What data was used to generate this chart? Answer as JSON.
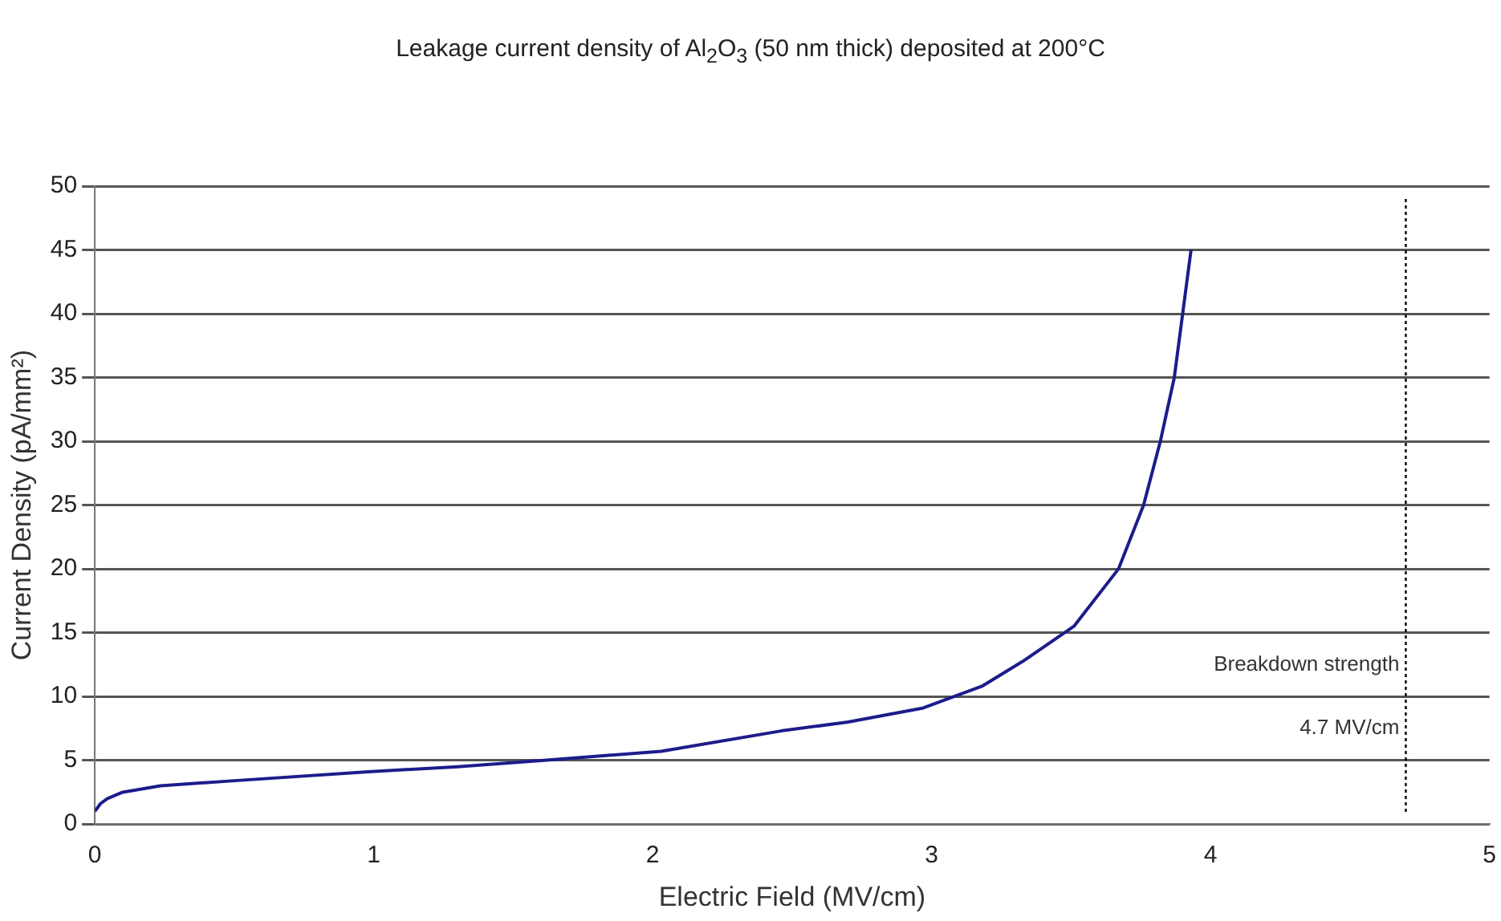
{
  "chart_data": {
    "type": "line",
    "title": "Leakage current density of Al$_{2}$O$_{3}$ (50 nm thick) deposited at 200°C",
    "xlabel": "Electric Field (MV/cm)",
    "ylabel": "Current Density (pA/mm²)",
    "series": [
      {
        "color": "#1c1c8c",
        "x": [
          0,
          0.02,
          0.045,
          0.1,
          0.235,
          0.5,
          0.98,
          1.3,
          1.61,
          2.03,
          2.46,
          2.7,
          2.97,
          3.18,
          3.33,
          3.51,
          3.67,
          3.76,
          3.82,
          3.87,
          3.9,
          3.93
        ],
        "values": [
          1,
          1.6,
          2,
          2.5,
          3,
          3.4,
          4.1,
          4.5,
          5,
          5.7,
          7.3,
          8,
          9.1,
          10.8,
          12.8,
          15.5,
          20,
          25,
          30,
          35,
          40,
          45
        ]
      }
    ],
    "xlim": [
      0,
      5
    ],
    "xticks": [
      0,
      1,
      2,
      3,
      4,
      5
    ],
    "ylim": [
      0,
      50
    ],
    "yticks": [
      0,
      5,
      10,
      15,
      20,
      25,
      30,
      35,
      40,
      45,
      50
    ],
    "grid": "y",
    "marker": "none",
    "line_style": "solid",
    "ref_lines": [
      {
        "axis": "x",
        "value": 4.7,
        "label": "4.7 MV/cm",
        "line_style": "dotted",
        "color": "#000000"
      }
    ],
    "annotations": [
      {
        "text": "Breakdown strength",
        "x": 4.7,
        "y": 12.5
      }
    ]
  }
}
